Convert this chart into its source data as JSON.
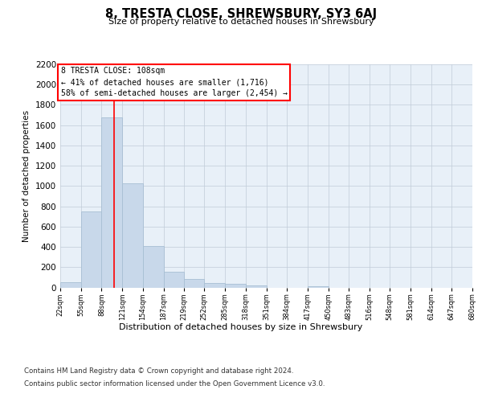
{
  "title": "8, TRESTA CLOSE, SHREWSBURY, SY3 6AJ",
  "subtitle": "Size of property relative to detached houses in Shrewsbury",
  "xlabel": "Distribution of detached houses by size in Shrewsbury",
  "ylabel": "Number of detached properties",
  "bar_color": "#c8d8ea",
  "bar_edge_color": "#a8bfd4",
  "grid_color": "#c0ccd8",
  "bg_color": "#e8f0f8",
  "vline_x": 108,
  "vline_color": "red",
  "annotation_line1": "8 TRESTA CLOSE: 108sqm",
  "annotation_line2": "← 41% of detached houses are smaller (1,716)",
  "annotation_line3": "58% of semi-detached houses are larger (2,454) →",
  "annotation_box_color": "#ffffff",
  "annotation_border_color": "red",
  "bin_edges": [
    22,
    55,
    88,
    121,
    154,
    187,
    219,
    252,
    285,
    318,
    351,
    384,
    417,
    450,
    483,
    516,
    548,
    581,
    614,
    647,
    680
  ],
  "bar_heights": [
    50,
    750,
    1680,
    1030,
    405,
    155,
    85,
    45,
    32,
    20,
    0,
    0,
    15,
    0,
    0,
    0,
    0,
    0,
    0,
    0
  ],
  "ylim": [
    0,
    2200
  ],
  "yticks": [
    0,
    200,
    400,
    600,
    800,
    1000,
    1200,
    1400,
    1600,
    1800,
    2000,
    2200
  ],
  "footnote_line1": "Contains HM Land Registry data © Crown copyright and database right 2024.",
  "footnote_line2": "Contains public sector information licensed under the Open Government Licence v3.0."
}
